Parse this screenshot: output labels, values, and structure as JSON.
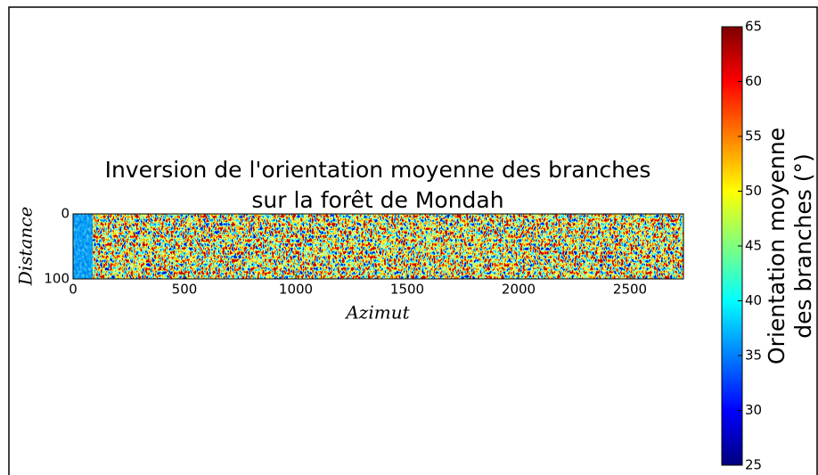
{
  "chart_data": {
    "type": "heatmap",
    "title": [
      "Inversion de l'orientation moyenne des branches",
      "sur la forêt de Mondah"
    ],
    "xlabel": "Azimut",
    "ylabel": "Distance",
    "xlim": [
      0,
      2740
    ],
    "xticks": [
      0,
      500,
      1000,
      1500,
      2000,
      2500
    ],
    "ylim": [
      0,
      100
    ],
    "yticks": [
      0,
      100
    ],
    "y_inverted": true,
    "colormap": "jet",
    "colorbar": {
      "label": [
        "Orientation moyenne",
        "des branches (°)"
      ],
      "lim": [
        25,
        65
      ],
      "ticks": [
        25,
        30,
        35,
        40,
        45,
        50,
        55,
        60,
        65
      ]
    }
  }
}
